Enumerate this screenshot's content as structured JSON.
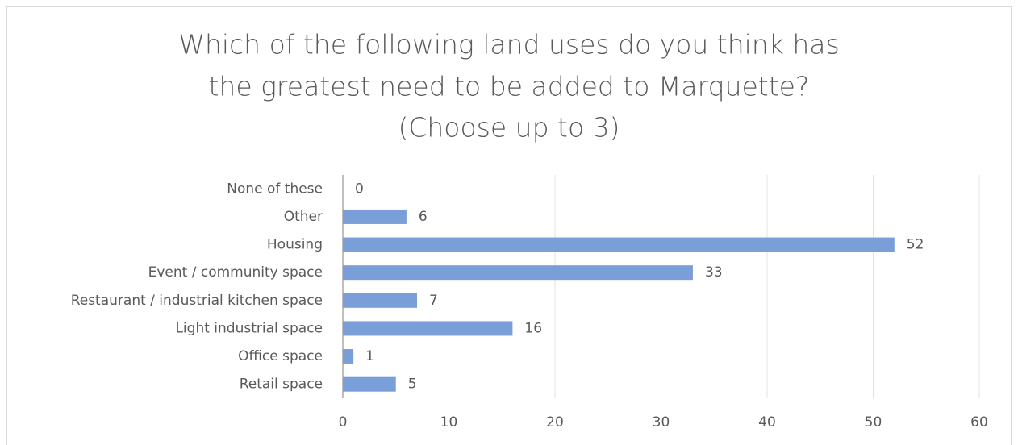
{
  "chart_data": {
    "type": "barh",
    "title": [
      "Which of the following land uses do you think has",
      "the greatest need to be added to Marquette?",
      "(Choose up to 3)"
    ],
    "categories": [
      "None of these",
      "Other",
      "Housing",
      "Event / community space",
      "Restaurant / industrial kitchen space",
      "Light industrial space",
      "Office space",
      "Retail space"
    ],
    "values": [
      0,
      6,
      52,
      33,
      7,
      16,
      1,
      5
    ],
    "color": "#7a9fd8",
    "xlim": [
      0,
      60
    ],
    "xticks": [
      0,
      10,
      20,
      30,
      40,
      50,
      60
    ],
    "grid": true
  }
}
